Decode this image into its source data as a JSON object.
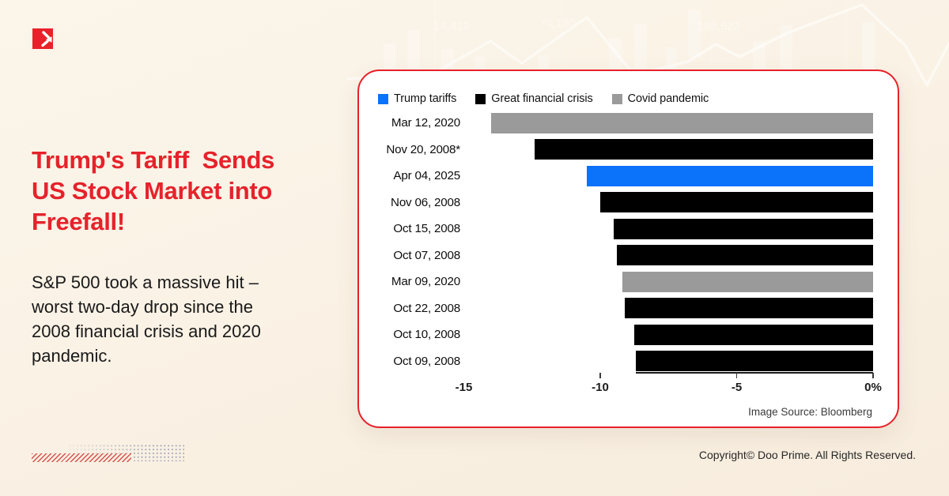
{
  "brand": {
    "logo_color": "#e8212a",
    "copyright": "Copyright© Doo Prime. All Rights Reserved."
  },
  "headline": {
    "color": "#e6222b",
    "lines": [
      "Trump's Tariff  Sends",
      "US Stock Market into",
      "Freefall!"
    ]
  },
  "subtext": {
    "lines": [
      "S&P 500 took a massive hit –",
      "worst two-day drop since the",
      "2008 financial crisis and 2020",
      "pandemic."
    ]
  },
  "card": {
    "border_color": "#e8212a",
    "source_note": "Image Source: Bloomberg"
  },
  "chart_data": {
    "type": "bar",
    "orientation": "horizontal",
    "unit": "%",
    "title": "",
    "legend_position": "top",
    "series_legend": [
      {
        "key": "trump",
        "name": "Trump tariffs",
        "color": "#0a73fa"
      },
      {
        "key": "gfc",
        "name": "Great financial crisis",
        "color": "#000000"
      },
      {
        "key": "covid",
        "name": "Covid pandemic",
        "color": "#9a9a9a"
      }
    ],
    "rows": [
      {
        "label": "Mar 12, 2020",
        "value": -14.0,
        "series": "covid"
      },
      {
        "label": "Nov 20, 2008*",
        "value": -12.4,
        "series": "gfc"
      },
      {
        "label": "Apr 04, 2025",
        "value": -10.5,
        "series": "trump"
      },
      {
        "label": "Nov 06, 2008",
        "value": -10.0,
        "series": "gfc"
      },
      {
        "label": "Oct 15, 2008",
        "value": -9.5,
        "series": "gfc"
      },
      {
        "label": "Oct 07, 2008",
        "value": -9.4,
        "series": "gfc"
      },
      {
        "label": "Mar 09, 2020",
        "value": -9.2,
        "series": "covid"
      },
      {
        "label": "Oct 22, 2008",
        "value": -9.1,
        "series": "gfc"
      },
      {
        "label": "Oct 10, 2008",
        "value": -8.75,
        "series": "gfc"
      },
      {
        "label": "Oct 09, 2008",
        "value": -8.7,
        "series": "gfc"
      }
    ],
    "x_axis": {
      "min": -15,
      "max": 0,
      "ticks": [
        {
          "label": "-15",
          "value": -15,
          "tick": false
        },
        {
          "label": "-10",
          "value": -10,
          "tick": true
        },
        {
          "label": "-5",
          "value": -5,
          "tick": true
        },
        {
          "label": "0%",
          "value": 0,
          "tick": true
        }
      ]
    }
  },
  "watermark": {
    "numbers": [
      "14,419",
      "76,180",
      "186,523"
    ]
  }
}
